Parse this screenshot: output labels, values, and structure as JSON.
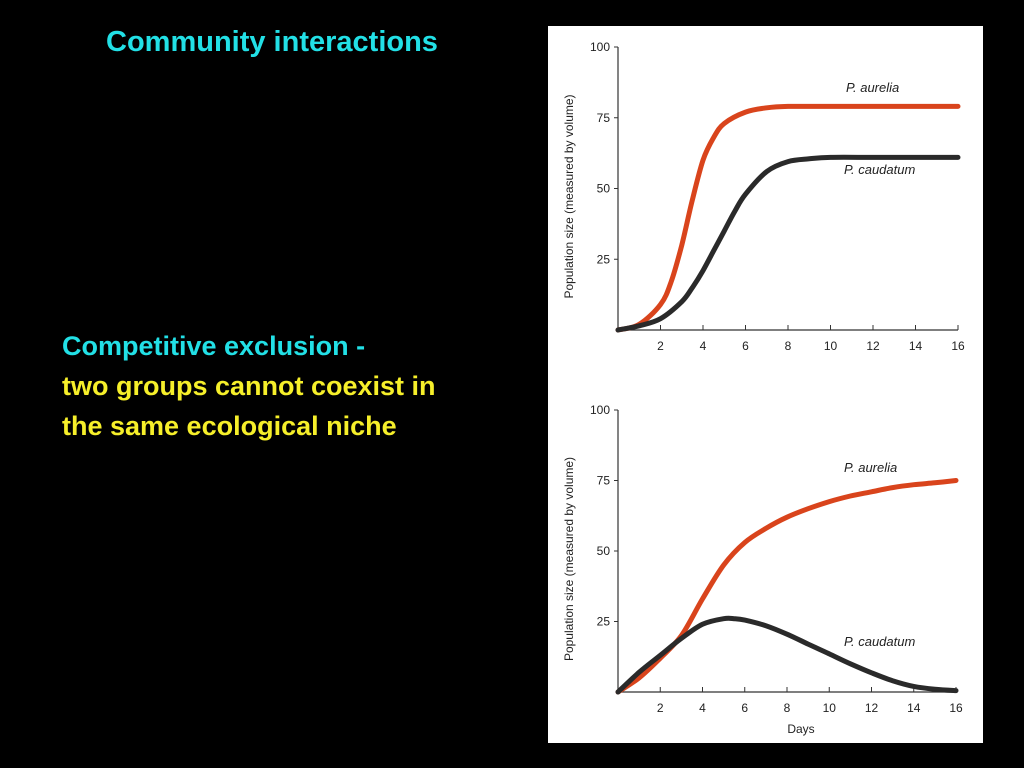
{
  "slide": {
    "title": "Community interactions",
    "term": "Competitive exclusion -",
    "definition": "two groups cannot coexist in the same ecological niche"
  },
  "colors": {
    "background": "#000000",
    "title": "#22e0e6",
    "term": "#22e0e6",
    "definition": "#f6ef2a",
    "aurelia_series": "#d9441c",
    "caudatum_series": "#2a2a2a"
  },
  "chart_data": [
    {
      "type": "line",
      "title": "",
      "xlabel": "",
      "ylabel": "Population size (measured by volume)",
      "xlim": [
        0,
        16
      ],
      "ylim": [
        0,
        100
      ],
      "xticks": [
        2,
        4,
        6,
        8,
        10,
        12,
        14,
        16
      ],
      "yticks": [
        25,
        50,
        75,
        100
      ],
      "grid": false,
      "series": [
        {
          "name": "P. aurelia",
          "color": "#d9441c",
          "x": [
            0,
            1,
            2,
            2.5,
            3,
            3.5,
            4,
            4.5,
            5,
            6,
            7,
            8,
            10,
            12,
            14,
            16
          ],
          "y": [
            0,
            2,
            9,
            17,
            30,
            46,
            60,
            68,
            73,
            77,
            78.5,
            79,
            79,
            79,
            79,
            79
          ]
        },
        {
          "name": "P. caudatum",
          "color": "#2a2a2a",
          "x": [
            0,
            1,
            2,
            3,
            3.5,
            4,
            4.5,
            5,
            5.5,
            6,
            7,
            8,
            9,
            10,
            12,
            14,
            16
          ],
          "y": [
            0,
            1.5,
            4,
            10,
            15,
            21,
            28,
            35,
            42,
            48,
            56,
            59.5,
            60.5,
            61,
            61,
            61,
            61
          ]
        }
      ]
    },
    {
      "type": "line",
      "title": "",
      "xlabel": "Days",
      "ylabel": "Population size (measured by volume)",
      "xlim": [
        0,
        16
      ],
      "ylim": [
        0,
        100
      ],
      "xticks": [
        2,
        4,
        6,
        8,
        10,
        12,
        14,
        16
      ],
      "yticks": [
        25,
        50,
        75,
        100
      ],
      "grid": false,
      "series": [
        {
          "name": "P. aurelia",
          "color": "#d9441c",
          "x": [
            0,
            1,
            2,
            3,
            4,
            5,
            6,
            7,
            8,
            9,
            10,
            11,
            12,
            13,
            14,
            15,
            16
          ],
          "y": [
            0,
            5,
            12,
            20,
            33,
            45,
            53,
            58,
            62,
            65,
            67.5,
            69.5,
            71,
            72.5,
            73.5,
            74.2,
            75
          ]
        },
        {
          "name": "P. caudatum",
          "color": "#2a2a2a",
          "x": [
            0,
            1,
            2,
            3,
            4,
            5,
            5.5,
            6,
            7,
            8,
            9,
            10,
            11,
            12,
            13,
            14,
            15,
            16
          ],
          "y": [
            0,
            7,
            13,
            19,
            24,
            26,
            26,
            25.5,
            23.5,
            20.5,
            17,
            13.5,
            10,
            6.8,
            4,
            2,
            1,
            0.5
          ]
        }
      ]
    }
  ]
}
